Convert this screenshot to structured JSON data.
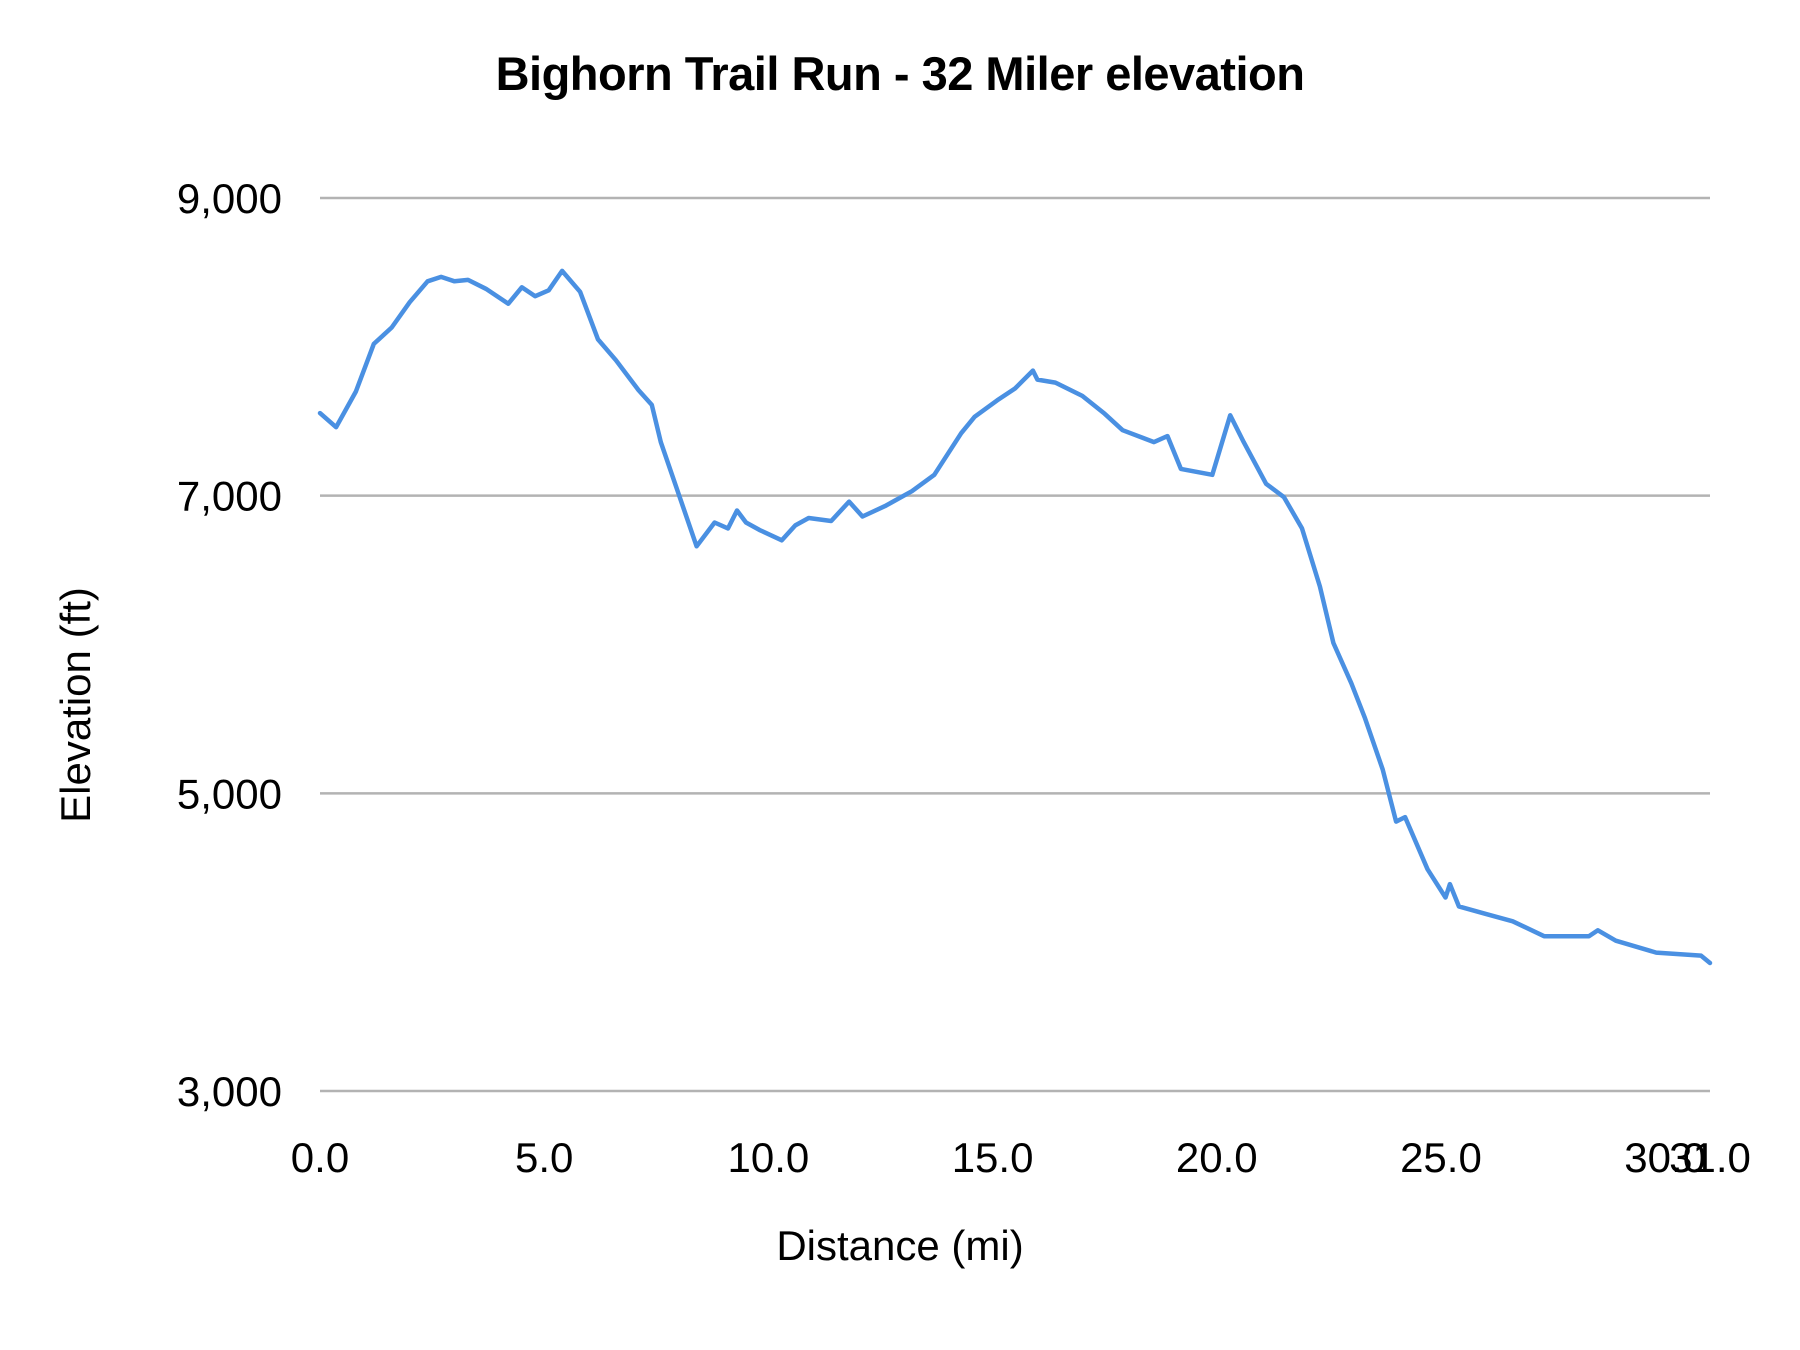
{
  "chart_data": {
    "type": "line",
    "title": "Bighorn Trail Run - 32 Miler elevation",
    "xlabel": "Distance (mi)",
    "ylabel": "Elevation (ft)",
    "xlim": [
      0,
      31.0
    ],
    "ylim": [
      3000,
      9000
    ],
    "grid": true,
    "legend": "none",
    "line_color": "#4a90e2",
    "grid_color": "#b3b3b3",
    "y_ticks": [
      "3,000",
      "5,000",
      "7,000",
      "9,000"
    ],
    "y_tick_values": [
      3000,
      5000,
      7000,
      9000
    ],
    "x_ticks": [
      "0.0",
      "5.0",
      "10.0",
      "15.0",
      "20.0",
      "25.0",
      "30.0",
      "31.0"
    ],
    "x_tick_values": [
      0,
      5,
      10,
      15,
      20,
      25,
      30,
      31
    ],
    "series": [
      {
        "name": "Elevation",
        "x": [
          0,
          0.36,
          0.8,
          1.2,
          1.6,
          2.0,
          2.4,
          2.7,
          3.0,
          3.3,
          3.7,
          4.2,
          4.5,
          4.8,
          5.1,
          5.4,
          5.8,
          6.2,
          6.6,
          7.1,
          7.4,
          7.6,
          8.0,
          8.4,
          8.8,
          9.1,
          9.3,
          9.5,
          9.8,
          10.3,
          10.6,
          10.9,
          11.4,
          11.8,
          12.1,
          12.6,
          13.2,
          13.7,
          14.3,
          14.6,
          15.1,
          15.5,
          15.9,
          16.0,
          16.4,
          17.0,
          17.5,
          17.9,
          18.6,
          18.9,
          19.2,
          19.9,
          20.3,
          20.6,
          21.1,
          21.5,
          21.9,
          22.3,
          22.6,
          23.0,
          23.3,
          23.7,
          24.0,
          24.2,
          24.7,
          25.1,
          25.2,
          25.4,
          26.0,
          26.6,
          27.3,
          28.3,
          28.5,
          28.9,
          29.8,
          30.8,
          31.0
        ],
        "y": [
          7555,
          7460,
          7700,
          8020,
          8130,
          8300,
          8440,
          8470,
          8440,
          8450,
          8390,
          8290,
          8400,
          8340,
          8380,
          8510,
          8370,
          8050,
          7910,
          7710,
          7610,
          7360,
          7010,
          6660,
          6820,
          6780,
          6900,
          6820,
          6770,
          6700,
          6800,
          6850,
          6830,
          6960,
          6860,
          6930,
          7030,
          7140,
          7420,
          7530,
          7640,
          7720,
          7840,
          7780,
          7760,
          7670,
          7550,
          7440,
          7360,
          7400,
          7180,
          7140,
          7540,
          7360,
          7080,
          6990,
          6780,
          6390,
          6010,
          5740,
          5510,
          5160,
          4810,
          4840,
          4490,
          4300,
          4390,
          4240,
          4190,
          4140,
          4040,
          4040,
          4080,
          4010,
          3930,
          3910,
          3860
        ]
      }
    ]
  }
}
